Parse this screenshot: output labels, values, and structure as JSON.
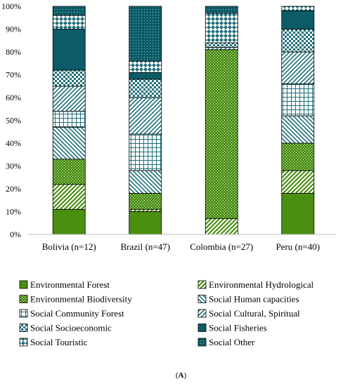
{
  "caption": {
    "prefix": "(",
    "label": "A",
    "suffix": ")"
  },
  "chart_data": {
    "type": "bar",
    "stacked": true,
    "percent": true,
    "categories": [
      "Bolivia (n=12)",
      "Brazil (n=47)",
      "Colombia (n=27)",
      "Peru (n=40)"
    ],
    "ylim": [
      0,
      100
    ],
    "yticks": [
      "0%",
      "10%",
      "20%",
      "30%",
      "40%",
      "50%",
      "60%",
      "70%",
      "80%",
      "90%",
      "100%"
    ],
    "grid": false,
    "legend_position": "bottom",
    "series": [
      {
        "name": "Environmental Forest",
        "color": "#4a8f12",
        "pattern": "solid",
        "values": [
          11,
          10,
          0,
          18
        ]
      },
      {
        "name": "Environmental Hydrological",
        "color": "#4a8f12",
        "pattern": "diag-wide",
        "values": [
          11,
          1,
          7,
          10
        ]
      },
      {
        "name": "Environmental Biodiversity",
        "color": "#4a8f12",
        "pattern": "dots",
        "values": [
          11,
          7,
          74,
          12
        ]
      },
      {
        "name": "Social Human capacities",
        "color": "#1f6e7a",
        "pattern": "diag-back",
        "values": [
          14,
          10,
          0,
          12
        ]
      },
      {
        "name": "Social Community Forest",
        "color": "#1f6e7a",
        "pattern": "grid",
        "values": [
          7,
          16,
          0,
          14
        ]
      },
      {
        "name": "Social Cultural, Spiritual",
        "color": "#1f6e7a",
        "pattern": "diag-fwd",
        "values": [
          11,
          16,
          1,
          14
        ]
      },
      {
        "name": "Social Socioeconomic",
        "color": "#1f6e7a",
        "pattern": "checker",
        "values": [
          7,
          8,
          2,
          10
        ]
      },
      {
        "name": "Social Fisheries",
        "color": "#0b5c66",
        "pattern": "solid",
        "values": [
          18,
          3,
          0,
          8
        ]
      },
      {
        "name": "Social Touristic",
        "color": "#1f6e7a",
        "pattern": "diamond",
        "values": [
          6,
          5,
          13,
          2
        ]
      },
      {
        "name": "Social Other",
        "color": "#0b5c66",
        "pattern": "dots-dark",
        "values": [
          4,
          24,
          3,
          0
        ]
      }
    ]
  }
}
